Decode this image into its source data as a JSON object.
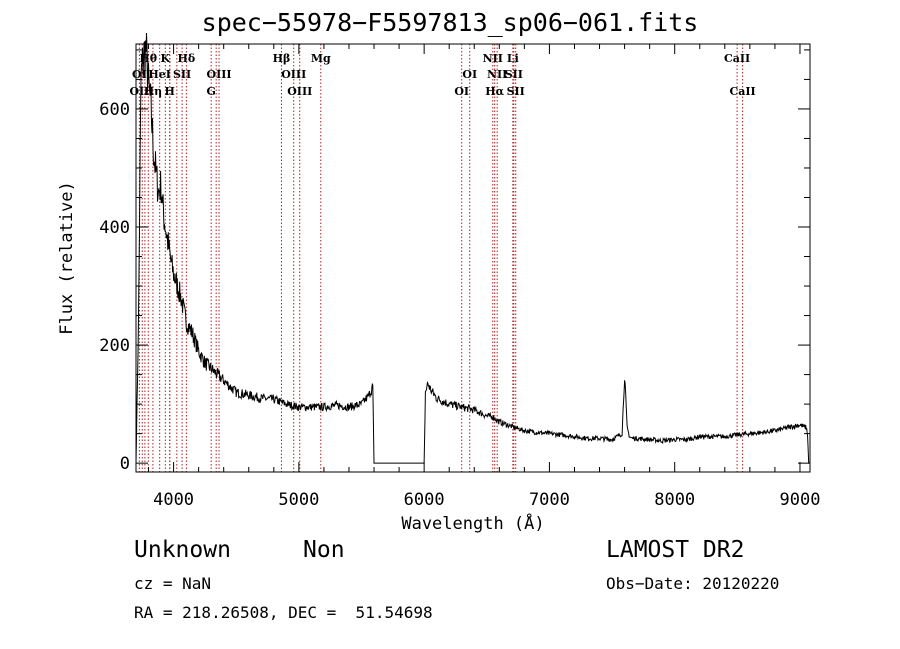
{
  "header": {
    "title": "spec−55978−F5597813_sp06−061.fits"
  },
  "info": {
    "object_class": "Unknown",
    "object_subclass": "Non",
    "survey": "LAMOST DR2",
    "cz": "cz = NaN",
    "obs_date": "Obs−Date: 20120220",
    "radec": "RA = 218.26508, DEC =  51.54698"
  },
  "colors": {
    "spectrum": "#000000",
    "line_markers": "#b02020",
    "axes": "#000000",
    "background": "#ffffff"
  },
  "chart_data": {
    "type": "line",
    "xlabel": "Wavelength (Å)",
    "ylabel": "Flux (relative)",
    "xlim": [
      3700,
      9080
    ],
    "ylim": [
      -15,
      710
    ],
    "xticks": [
      4000,
      5000,
      6000,
      7000,
      8000,
      9000
    ],
    "yticks": [
      0,
      200,
      400,
      600
    ],
    "grid": false,
    "series": [
      {
        "x": [
          3700,
          3720,
          3740,
          3760,
          3780,
          3800,
          3820,
          3840,
          3860,
          3880,
          3900,
          3920,
          3950,
          3980,
          4000,
          4030,
          4060,
          4100,
          4150,
          4200,
          4250,
          4300,
          4350,
          4400,
          4450,
          4500,
          4600,
          4700,
          4800,
          4900,
          5000,
          5100,
          5200,
          5300,
          5400,
          5500,
          5560,
          5590,
          5600,
          5610,
          5620,
          6000,
          6010,
          6030,
          6050,
          6100,
          6150,
          6200,
          6300,
          6400,
          6500,
          6550,
          6600,
          6700,
          6800,
          6900,
          7000,
          7100,
          7200,
          7300,
          7400,
          7500,
          7580,
          7600,
          7620,
          7640,
          7660,
          7700,
          7800,
          7900,
          8000,
          8100,
          8200,
          8300,
          8400,
          8500,
          8600,
          8700,
          8800,
          8900,
          9000,
          9050,
          9060,
          9070,
          9080
        ],
        "y": [
          0,
          240,
          650,
          690,
          700,
          640,
          600,
          530,
          490,
          460,
          470,
          420,
          380,
          340,
          320,
          300,
          280,
          240,
          220,
          190,
          170,
          160,
          150,
          140,
          130,
          120,
          115,
          110,
          108,
          100,
          95,
          95,
          95,
          98,
          95,
          100,
          115,
          130,
          0,
          0,
          0,
          0,
          120,
          135,
          125,
          110,
          105,
          100,
          95,
          90,
          80,
          78,
          70,
          62,
          55,
          52,
          50,
          48,
          45,
          42,
          42,
          40,
          50,
          150,
          60,
          45,
          42,
          42,
          40,
          38,
          40,
          40,
          45,
          45,
          45,
          48,
          50,
          52,
          55,
          60,
          65,
          60,
          50,
          0,
          0
        ]
      }
    ],
    "line_markers": {
      "wavelengths": [
        3727,
        3750,
        3771,
        3798,
        3835,
        3889,
        3934,
        3969,
        3970,
        4026,
        4068,
        4102,
        4300,
        4340,
        4363,
        4861,
        4959,
        5007,
        5175,
        6300,
        6364,
        6548,
        6563,
        6583,
        6708,
        6716,
        6731,
        8498,
        8542
      ],
      "labels": {
        "row1": [
          {
            "text": "Hθ",
            "wl": 3798
          },
          {
            "text": "K",
            "wl": 3934
          },
          {
            "text": "Hδ",
            "wl": 4102
          },
          {
            "text": "Hβ",
            "wl": 4861
          },
          {
            "text": "Mg",
            "wl": 5175
          },
          {
            "text": "NII",
            "wl": 6548
          },
          {
            "text": "Li",
            "wl": 6708
          },
          {
            "text": "CaII",
            "wl": 8498
          }
        ],
        "row2": [
          {
            "text": "OI",
            "wl": 3727
          },
          {
            "text": "HeI",
            "wl": 3889
          },
          {
            "text": "SII",
            "wl": 4068
          },
          {
            "text": "OIII",
            "wl": 4363
          },
          {
            "text": "OIII",
            "wl": 4959
          },
          {
            "text": "OI",
            "wl": 6364
          },
          {
            "text": "NII",
            "wl": 6583
          },
          {
            "text": "SII",
            "wl": 6716
          }
        ],
        "row3": [
          {
            "text": "OII",
            "wl": 3727
          },
          {
            "text": "Hη",
            "wl": 3835
          },
          {
            "text": "H",
            "wl": 3969
          },
          {
            "text": "G",
            "wl": 4300
          },
          {
            "text": "OIII",
            "wl": 5007
          },
          {
            "text": "OI",
            "wl": 6300
          },
          {
            "text": "Hα",
            "wl": 6563
          },
          {
            "text": "SII",
            "wl": 6731
          },
          {
            "text": "CaII",
            "wl": 8542
          }
        ]
      }
    }
  }
}
